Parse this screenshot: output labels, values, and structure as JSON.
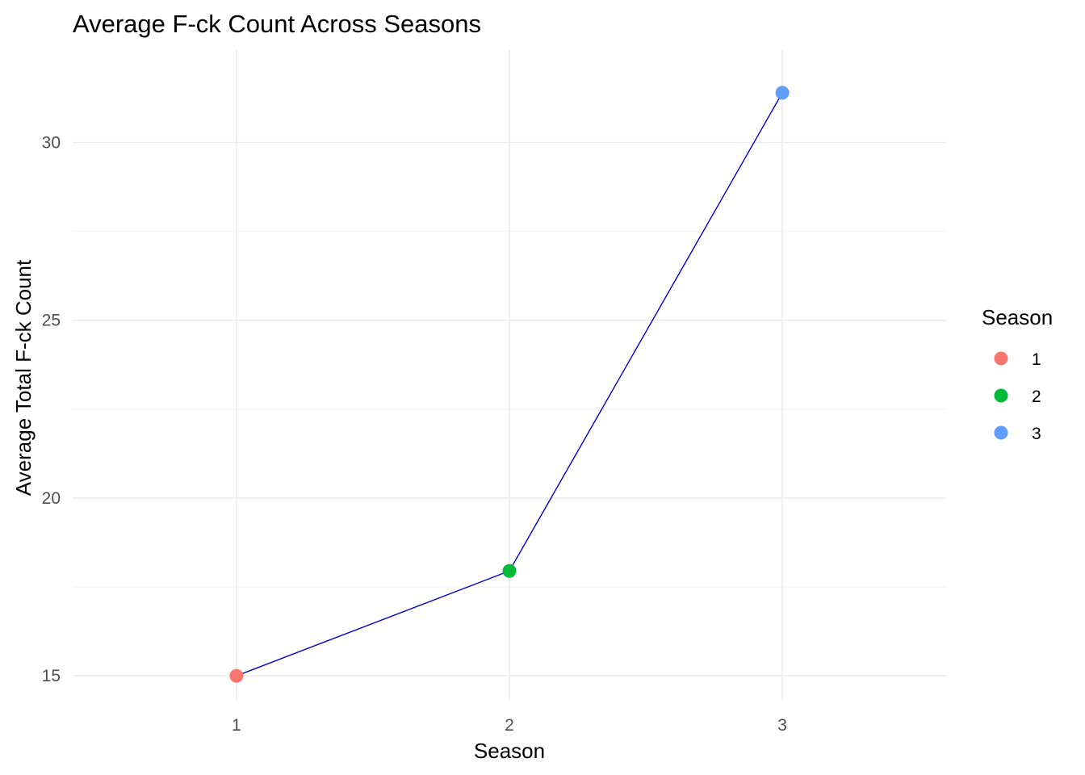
{
  "chart_data": {
    "type": "line",
    "title": "Average F-ck Count Across Seasons",
    "xlabel": "Season",
    "ylabel": "Average Total F-ck Count",
    "x": [
      1,
      2,
      3
    ],
    "x_tick_labels": [
      "1",
      "2",
      "3"
    ],
    "xlim": [
      0.4,
      3.6
    ],
    "ylim": [
      14.3,
      32.6
    ],
    "y_ticks": [
      15,
      20,
      25,
      30
    ],
    "y_tick_labels": [
      "15",
      "20",
      "25",
      "30"
    ],
    "line_color": "#0000cd",
    "series": [
      {
        "values": [
          15.0,
          17.95,
          31.4
        ],
        "point_colors": [
          "#F8766D",
          "#00BA38",
          "#619CFF"
        ]
      }
    ],
    "legend": {
      "title": "Season",
      "placement": "right",
      "entries": [
        {
          "label": "1",
          "color": "#F8766D"
        },
        {
          "label": "2",
          "color": "#00BA38"
        },
        {
          "label": "3",
          "color": "#619CFF"
        }
      ]
    },
    "grid": true
  }
}
